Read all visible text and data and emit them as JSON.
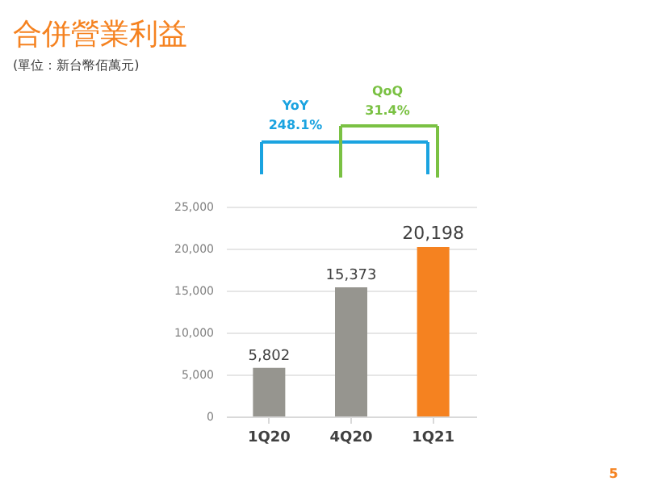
{
  "chart_data": {
    "type": "bar",
    "title": "合併營業利益",
    "subtitle": "(單位：新台幣佰萬元)",
    "categories": [
      "1Q20",
      "4Q20",
      "1Q21"
    ],
    "values": [
      5802,
      15373,
      20198
    ],
    "colors": [
      "#96958f",
      "#96958f",
      "#f58220"
    ],
    "ylim": [
      0,
      25000
    ],
    "yticks": [
      {
        "value": 0,
        "label": "0"
      },
      {
        "value": 5000,
        "label": "5,000"
      },
      {
        "value": 10000,
        "label": "10,000"
      },
      {
        "value": 15000,
        "label": "15,000"
      },
      {
        "value": 20000,
        "label": "20,000"
      },
      {
        "value": 25000,
        "label": "25,000"
      }
    ],
    "value_labels": [
      "5,802",
      "15,373",
      "20,198"
    ],
    "grid": "y",
    "annotations": [
      "YoY",
      "248.1%",
      "QoQ",
      "31.4%",
      "5"
    ]
  }
}
